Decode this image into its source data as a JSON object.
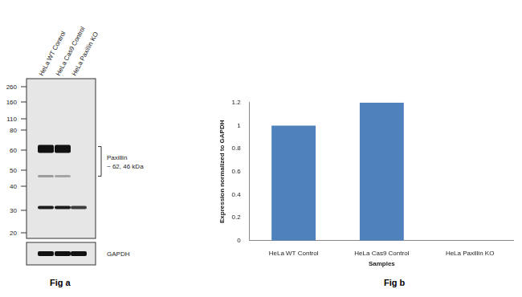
{
  "chart_data": {
    "type": "bar",
    "categories": [
      "HeLa WT Control",
      "HeLa Cas9 Control",
      "HeLa Paxillin KO"
    ],
    "values": [
      1,
      1.2,
      0
    ],
    "color": "#4f81bd",
    "x_label": "Samples",
    "y_label": "Expression normalized to GAPDH",
    "ylim": [
      0,
      1.2
    ],
    "yticks": [
      0,
      0.2,
      0.4,
      0.6,
      0.8,
      1,
      1.2
    ],
    "grid": false
  },
  "blot": {
    "lanes": [
      "HeLa WT Control",
      "HeLa Cas9 Control",
      "HeLa Paxillin KO"
    ],
    "markers_kDa": [
      260,
      160,
      110,
      80,
      60,
      50,
      40,
      30,
      20
    ],
    "bands": [
      {
        "kDa": 61,
        "intensity": [
          1,
          1,
          0
        ]
      },
      {
        "kDa": 46,
        "intensity": [
          0.35,
          0.3,
          0
        ]
      },
      {
        "kDa": 31,
        "intensity": [
          0.95,
          0.95,
          0.8
        ]
      }
    ],
    "target_label": [
      "Paxillin",
      "~ 62, 46 kDa"
    ],
    "loading_control": {
      "label": "GAPDH",
      "intensity": [
        1,
        1,
        1
      ]
    }
  },
  "captions": [
    "Fig a",
    "Fig b"
  ]
}
